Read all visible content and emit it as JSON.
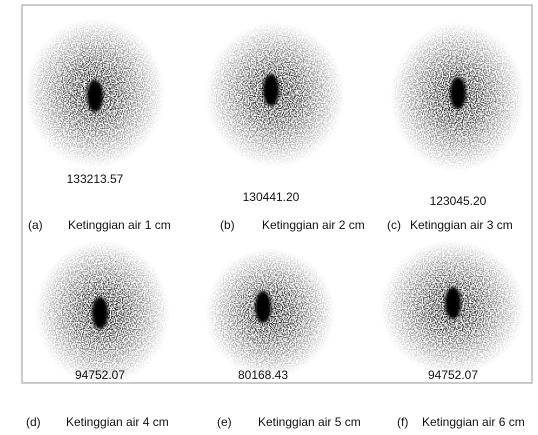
{
  "figure": {
    "panels": [
      {
        "value": "133213.57",
        "label": "(a)",
        "caption": "Ketinggian air 1 cm"
      },
      {
        "value": "130441.20",
        "label": "(b)",
        "caption": "Ketinggian air 2 cm"
      },
      {
        "value": "123045.20",
        "label": "(c)",
        "caption": "Ketinggian air 3 cm"
      },
      {
        "value": "94752.07",
        "label": "(d)",
        "caption": "Ketinggian air 4 cm"
      },
      {
        "value": "80168.43",
        "label": "(e)",
        "caption": "Ketinggian air 5 cm"
      },
      {
        "value": "94752.07",
        "label": "(f)",
        "caption": "Ketinggian air 6 cm"
      }
    ]
  }
}
